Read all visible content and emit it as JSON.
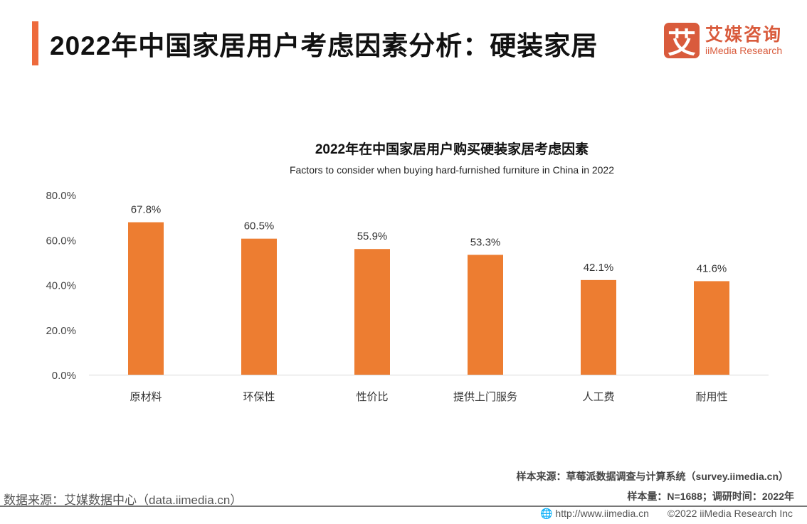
{
  "header": {
    "title": "2022年中国家居用户考虑因素分析：硬装家居",
    "logo_mark": "艾",
    "logo_cn": "艾媒咨询",
    "logo_en": "iiMedia Research"
  },
  "chart_data": {
    "type": "bar",
    "title": "2022年在中国家居用户购买硬装家居考虑因素",
    "subtitle": "Factors to consider when buying hard-furnished furniture in China in 2022",
    "categories": [
      "原材料",
      "环保性",
      "性价比",
      "提供上门服务",
      "人工费",
      "耐用性"
    ],
    "values": [
      67.8,
      60.5,
      55.9,
      53.3,
      42.1,
      41.6
    ],
    "data_labels": [
      "67.8%",
      "60.5%",
      "55.9%",
      "53.3%",
      "42.1%",
      "41.6%"
    ],
    "yticks": [
      "0.0%",
      "20.0%",
      "40.0%",
      "60.0%",
      "80.0%"
    ],
    "ylim": [
      0,
      80
    ],
    "bar_color": "#ed7d31",
    "xlabel": "",
    "ylabel": ""
  },
  "footer": {
    "sample_source": "样本来源：草莓派数据调查与计算系统（survey.iimedia.cn）",
    "sample_size": "样本量：N=1688；调研时间：2022年",
    "data_source": "数据来源：艾媒数据中心（data.iimedia.cn）",
    "url": "http://www.iimedia.cn",
    "copyright": "©2022  iiMedia Research  Inc"
  }
}
